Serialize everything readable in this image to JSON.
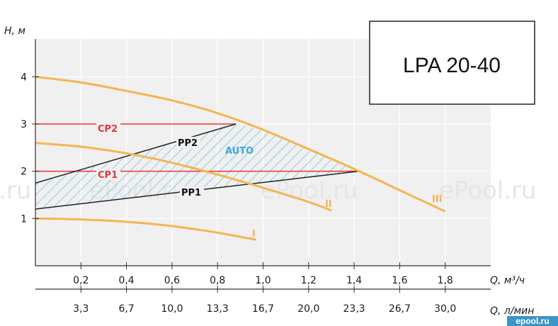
{
  "title": "LPA 20-40",
  "watermark": "ePool.ru",
  "watermark_left": ".ru",
  "site_badge": "epool.ru",
  "colors": {
    "plot_bg": "#f0f0f0",
    "curve": "#f5b553",
    "cp_line": "#e8333a",
    "pp_line": "#222222",
    "auto_hatch": "#4fb3dc"
  },
  "chart_data": {
    "type": "line",
    "ylabel": "H, м",
    "xlabel": "Q, м³/ч",
    "xlabel_secondary": "Q, л/мин",
    "xlim": [
      0,
      2.0
    ],
    "ylim": [
      0,
      4.8
    ],
    "x_ticks": [
      "0,2",
      "0,4",
      "0,6",
      "0,8",
      "1,0",
      "1,2",
      "1,4",
      "1,6",
      "1,8"
    ],
    "x_ticks_lmin": [
      "3,3",
      "6,7",
      "10,0",
      "13,3",
      "16,7",
      "20,0",
      "23,3",
      "26,7",
      "30,0"
    ],
    "y_ticks": [
      "1",
      "2",
      "3",
      "4"
    ],
    "grid": true,
    "series": [
      {
        "name": "I",
        "x": [
          0,
          0.2,
          0.4,
          0.6,
          0.8,
          0.97
        ],
        "y": [
          1.0,
          0.98,
          0.93,
          0.84,
          0.7,
          0.55
        ]
      },
      {
        "name": "II",
        "x": [
          0,
          0.2,
          0.4,
          0.6,
          0.8,
          1.0,
          1.2,
          1.3
        ],
        "y": [
          2.6,
          2.52,
          2.38,
          2.18,
          1.93,
          1.65,
          1.35,
          1.17
        ]
      },
      {
        "name": "III",
        "x": [
          0,
          0.2,
          0.4,
          0.6,
          0.8,
          1.0,
          1.2,
          1.4,
          1.6,
          1.8
        ],
        "y": [
          4.0,
          3.88,
          3.7,
          3.5,
          3.23,
          2.88,
          2.47,
          2.05,
          1.6,
          1.15
        ]
      }
    ],
    "control_lines": [
      {
        "name": "CP2",
        "x": [
          0,
          0.88
        ],
        "y": [
          3.0,
          3.0
        ]
      },
      {
        "name": "CP1",
        "x": [
          0,
          1.42
        ],
        "y": [
          2.0,
          2.0
        ]
      },
      {
        "name": "PP2",
        "x": [
          0,
          0.88
        ],
        "y": [
          1.75,
          3.0
        ]
      },
      {
        "name": "PP1",
        "x": [
          0,
          1.42
        ],
        "y": [
          1.2,
          2.0
        ]
      }
    ],
    "auto_region": {
      "name": "AUTO",
      "x": [
        0,
        0.88,
        1.0,
        1.2,
        1.42,
        0
      ],
      "y": [
        1.75,
        3.0,
        2.88,
        2.47,
        2.0,
        1.2
      ]
    },
    "labels": {
      "CP2": "CP2",
      "CP1": "CP1",
      "PP2": "PP2",
      "PP1": "PP1",
      "AUTO": "AUTO",
      "I": "I",
      "II": "II",
      "III": "III"
    }
  }
}
